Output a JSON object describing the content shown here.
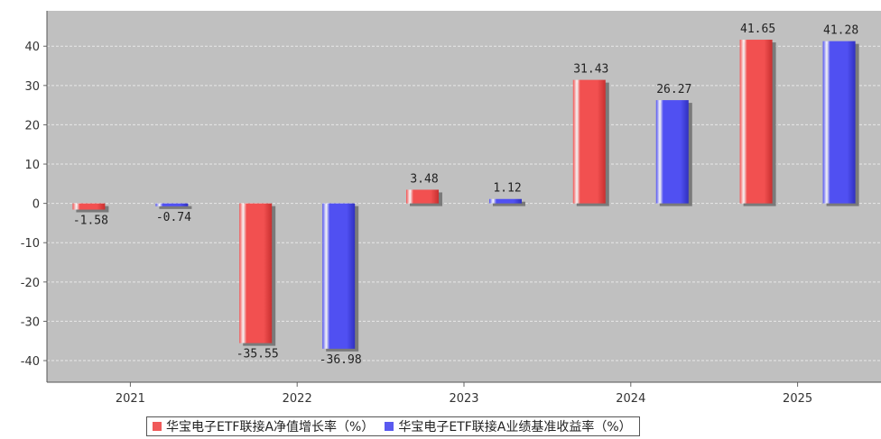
{
  "chart_data": {
    "type": "bar",
    "categories": [
      "2021",
      "2022",
      "2023",
      "2024",
      "2025"
    ],
    "series": [
      {
        "name": "华宝电子ETF联接A净值增长率（%）",
        "color": "#f05a5a",
        "values": [
          -1.58,
          -35.55,
          3.48,
          31.43,
          41.65
        ],
        "labels": [
          "-1.58",
          "-35.55",
          "3.48",
          "31.43",
          "41.65"
        ]
      },
      {
        "name": "华宝电子ETF联接A业绩基准收益率（%）",
        "color": "#5a5af0",
        "values": [
          -0.74,
          -36.98,
          1.12,
          26.27,
          41.28
        ],
        "labels": [
          "-0.74",
          "-36.98",
          "1.12",
          "26.27",
          "41.28"
        ]
      }
    ],
    "yticks": [
      40,
      30,
      20,
      10,
      0,
      -10,
      -20,
      -30,
      -40
    ],
    "ylim": [
      -45.5,
      49
    ],
    "grid": true,
    "legend_position": "bottom",
    "plot_background": "#c0c0c0"
  }
}
